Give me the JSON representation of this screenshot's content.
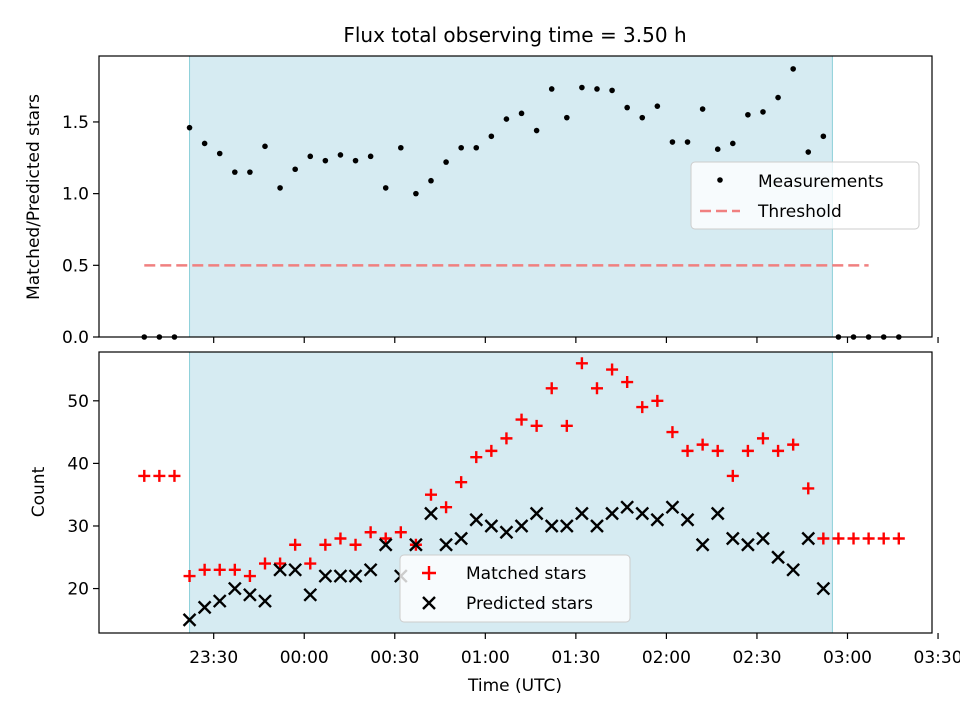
{
  "chart_data": [
    {
      "type": "scatter",
      "title": "Flux total observing time = 3.50 h",
      "ylabel": "Matched/Predicted stars",
      "ylim": [
        0,
        1.96
      ],
      "yticks": [
        "0.0",
        "0.5",
        "1.0",
        "1.5"
      ],
      "ytick_values": [
        0,
        0.5,
        1.0,
        1.5
      ],
      "shaded_span": [
        -8,
        205
      ],
      "threshold": {
        "name": "Threshold",
        "value": 0.5,
        "x": [
          -23,
          217
        ],
        "color": "#f08080"
      },
      "legend": {
        "position": "right",
        "entries": [
          "Measurements",
          "Threshold"
        ]
      },
      "series": [
        {
          "name": "Measurements",
          "color": "#000000",
          "x": [
            -23,
            -18,
            -13,
            -8,
            -3,
            2,
            7,
            12,
            17,
            22,
            27,
            32,
            37,
            42,
            47,
            52,
            57,
            62,
            67,
            72,
            77,
            82,
            87,
            92,
            97,
            102,
            107,
            112,
            117,
            122,
            127,
            132,
            137,
            142,
            147,
            152,
            157,
            162,
            167,
            172,
            177,
            182,
            187,
            192,
            197,
            202,
            207,
            212,
            217,
            222,
            227
          ],
          "y": [
            0,
            0,
            0,
            1.46,
            1.35,
            1.28,
            1.15,
            1.15,
            1.33,
            1.04,
            1.17,
            1.26,
            1.23,
            1.27,
            1.23,
            1.26,
            1.04,
            1.32,
            1.0,
            1.09,
            1.22,
            1.32,
            1.32,
            1.4,
            1.52,
            1.56,
            1.44,
            1.73,
            1.53,
            1.74,
            1.73,
            1.72,
            1.6,
            1.53,
            1.61,
            1.36,
            1.36,
            1.59,
            1.31,
            1.35,
            1.55,
            1.57,
            1.67,
            1.87,
            1.29,
            1.4,
            0,
            0,
            0,
            0,
            0
          ]
        }
      ]
    },
    {
      "type": "scatter",
      "xlabel": "Time (UTC)",
      "ylabel": "Count",
      "ylim": [
        12.9,
        57.8
      ],
      "yticks": [
        "20",
        "30",
        "40",
        "50"
      ],
      "ytick_values": [
        20,
        30,
        40,
        50
      ],
      "xlim": [
        -38,
        238
      ],
      "xticks": [
        "23:30",
        "00:00",
        "00:30",
        "01:00",
        "01:30",
        "02:00",
        "02:30",
        "03:00",
        "03:30"
      ],
      "xtick_values": [
        0,
        30,
        60,
        90,
        120,
        150,
        180,
        210,
        240
      ],
      "x_unit": "minutes after 23:30 UTC",
      "shaded_span": [
        -8,
        205
      ],
      "legend": {
        "position": "lower-center",
        "entries": [
          "Matched stars",
          "Predicted stars"
        ]
      },
      "series": [
        {
          "name": "Matched stars",
          "marker": "plus",
          "color": "#ff0000",
          "x": [
            -23,
            -18,
            -13,
            -8,
            -3,
            2,
            7,
            12,
            17,
            22,
            27,
            32,
            37,
            42,
            47,
            52,
            57,
            62,
            67,
            72,
            77,
            82,
            87,
            92,
            97,
            102,
            107,
            112,
            117,
            122,
            127,
            132,
            137,
            142,
            147,
            152,
            157,
            162,
            167,
            172,
            177,
            182,
            187,
            192,
            197,
            202,
            207,
            212,
            217,
            222,
            227
          ],
          "y": [
            38,
            38,
            38,
            22,
            23,
            23,
            23,
            22,
            24,
            24,
            27,
            24,
            27,
            28,
            27,
            29,
            28,
            29,
            27,
            35,
            33,
            37,
            41,
            42,
            44,
            47,
            46,
            52,
            46,
            56,
            52,
            55,
            53,
            49,
            50,
            45,
            42,
            43,
            42,
            38,
            42,
            44,
            42,
            43,
            36,
            28,
            28,
            28,
            28,
            28,
            28
          ]
        },
        {
          "name": "Predicted stars",
          "marker": "x",
          "color": "#000000",
          "x": [
            -8,
            -3,
            2,
            7,
            12,
            17,
            22,
            27,
            32,
            37,
            42,
            47,
            52,
            57,
            62,
            67,
            72,
            77,
            82,
            87,
            92,
            97,
            102,
            107,
            112,
            117,
            122,
            127,
            132,
            137,
            142,
            147,
            152,
            157,
            162,
            167,
            172,
            177,
            182,
            187,
            192,
            197,
            202
          ],
          "y": [
            15,
            17,
            18,
            20,
            19,
            18,
            23,
            23,
            19,
            22,
            22,
            22,
            23,
            27,
            22,
            27,
            32,
            27,
            28,
            31,
            30,
            29,
            30,
            32,
            30,
            30,
            32,
            30,
            32,
            33,
            32,
            31,
            33,
            31,
            27,
            32,
            28,
            27,
            28,
            25,
            23,
            28,
            20
          ]
        }
      ]
    }
  ]
}
